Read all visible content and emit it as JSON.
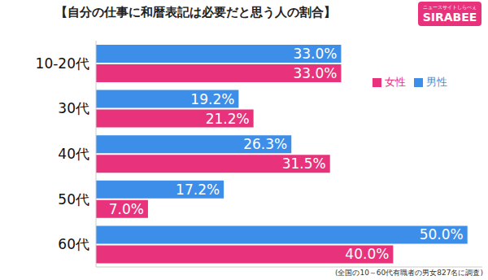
{
  "chart_data": {
    "type": "bar",
    "title": "【自分の仕事に和暦表記は必要だと思う人の割合】",
    "logo": "SIRABEE",
    "logo_caption": "ニュースサイトしらべぇ",
    "note": "(全国の10～60代有職者の男女827名に調査)",
    "orientation": "horizontal",
    "categories": [
      "10-20代",
      "30代",
      "40代",
      "50代",
      "60代"
    ],
    "series": [
      {
        "name": "男性",
        "color": "#3d8ee8",
        "values": [
          33.0,
          19.2,
          26.3,
          17.2,
          50.0
        ],
        "value_labels": [
          "33.0%",
          "19.2%",
          "26.3%",
          "17.2%",
          "50.0%"
        ]
      },
      {
        "name": "女性",
        "color": "#e8327c",
        "values": [
          33.0,
          21.2,
          31.5,
          7.0,
          40.0
        ],
        "value_labels": [
          "33.0%",
          "21.2%",
          "31.5%",
          "7.0%",
          "40.0%"
        ]
      }
    ],
    "xlim": [
      0,
      52
    ],
    "data_labels": true,
    "legend": "upper right",
    "tick_labels": "y",
    "grid": false
  }
}
